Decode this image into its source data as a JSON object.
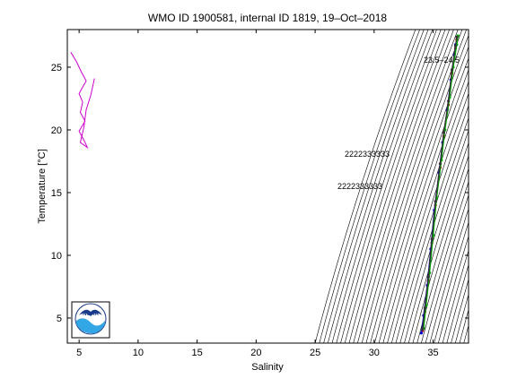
{
  "chart_data": {
    "type": "line",
    "title": "WMO ID 1900581, internal ID 1819, 19–Oct–2018",
    "xlabel": "Salinity",
    "ylabel": "Temperature [°C]",
    "xlim": [
      4,
      38
    ],
    "ylim": [
      3,
      28
    ],
    "xticks": [
      5,
      10,
      15,
      20,
      25,
      30,
      35
    ],
    "yticks": [
      5,
      10,
      15,
      20,
      25
    ],
    "grid": false,
    "logo_text": "NOAA",
    "density_contours": {
      "description_values_sigma": [
        18,
        40
      ],
      "count": 46,
      "color": "#000000",
      "labels_top": "23.5–24.5",
      "labels_mid1": "2222333333",
      "labels_mid2": "2222333333"
    },
    "series": [
      {
        "color": "#cc00cc",
        "points": [
          [
            4.3,
            26.2
          ],
          [
            4.8,
            25.4
          ],
          [
            5.2,
            24.6
          ],
          [
            5.6,
            23.9
          ],
          [
            5.0,
            22.9
          ],
          [
            5.3,
            22.2
          ],
          [
            5.1,
            21.4
          ],
          [
            5.5,
            20.7
          ],
          [
            5.0,
            19.9
          ],
          [
            5.4,
            19.2
          ],
          [
            5.7,
            18.6
          ],
          [
            5.1,
            19.0
          ],
          [
            5.4,
            20.2
          ],
          [
            5.6,
            21.6
          ],
          [
            6.0,
            22.8
          ],
          [
            6.3,
            24.1
          ]
        ]
      },
      {
        "color": "#cc0000",
        "points": [
          [
            34.1,
            4.0
          ],
          [
            34.3,
            5.5
          ],
          [
            34.6,
            8.0
          ],
          [
            34.9,
            11.0
          ],
          [
            35.2,
            14.0
          ],
          [
            35.6,
            17.0
          ],
          [
            35.9,
            19.5
          ],
          [
            36.3,
            22.0
          ],
          [
            36.6,
            24.5
          ],
          [
            36.9,
            26.5
          ],
          [
            37.0,
            27.2
          ]
        ]
      },
      {
        "color": "#0000cc",
        "points": [
          [
            34.0,
            3.8
          ],
          [
            34.2,
            5.2
          ],
          [
            34.5,
            7.6
          ],
          [
            34.8,
            10.5
          ],
          [
            35.1,
            13.6
          ],
          [
            35.5,
            16.6
          ],
          [
            35.8,
            19.0
          ],
          [
            36.2,
            21.6
          ],
          [
            36.5,
            24.0
          ],
          [
            36.8,
            26.0
          ],
          [
            36.9,
            26.8
          ]
        ]
      },
      {
        "color": "#00aa00",
        "points": [
          [
            34.2,
            4.2
          ],
          [
            34.4,
            6.0
          ],
          [
            34.7,
            8.6
          ],
          [
            35.0,
            11.6
          ],
          [
            35.3,
            14.6
          ],
          [
            35.7,
            17.6
          ],
          [
            36.0,
            20.0
          ],
          [
            36.4,
            22.6
          ],
          [
            36.7,
            25.0
          ],
          [
            37.0,
            26.8
          ],
          [
            37.1,
            27.5
          ]
        ]
      },
      {
        "color": "#333333",
        "points": [
          [
            34.1,
            4.1
          ],
          [
            34.3,
            5.8
          ],
          [
            34.6,
            8.3
          ],
          [
            34.9,
            11.3
          ],
          [
            35.2,
            14.3
          ],
          [
            35.6,
            17.3
          ],
          [
            35.9,
            19.8
          ],
          [
            36.3,
            22.3
          ],
          [
            36.6,
            24.8
          ],
          [
            36.9,
            26.7
          ],
          [
            37.0,
            27.4
          ]
        ]
      }
    ]
  }
}
